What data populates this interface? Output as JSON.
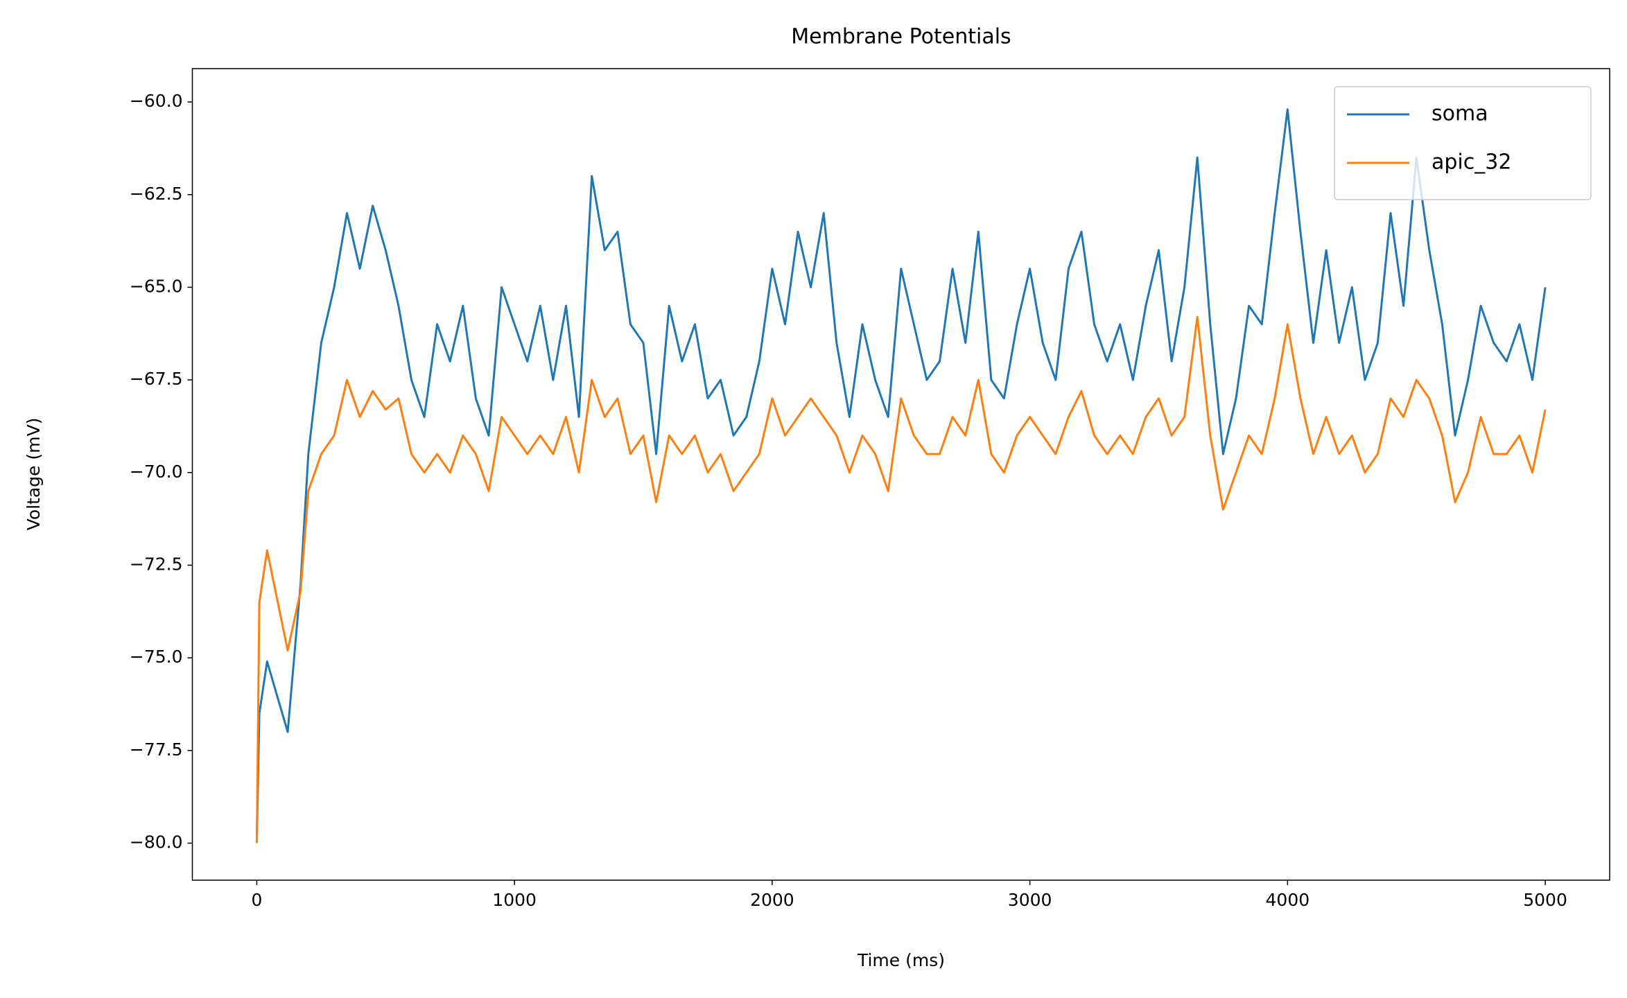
{
  "chart_data": {
    "type": "line",
    "title": "Membrane Potentials",
    "x_label": "Time (ms)",
    "y_label": "Voltage (mV)",
    "x": [
      0,
      10,
      40,
      120,
      170,
      200,
      250,
      300,
      350,
      400,
      450,
      500,
      550,
      600,
      650,
      700,
      750,
      800,
      850,
      900,
      950,
      1000,
      1050,
      1100,
      1150,
      1200,
      1250,
      1300,
      1350,
      1400,
      1450,
      1500,
      1550,
      1600,
      1650,
      1700,
      1750,
      1800,
      1850,
      1900,
      1950,
      2000,
      2050,
      2100,
      2150,
      2200,
      2250,
      2300,
      2350,
      2400,
      2450,
      2500,
      2550,
      2600,
      2650,
      2700,
      2750,
      2800,
      2850,
      2900,
      2950,
      3000,
      3050,
      3100,
      3150,
      3200,
      3250,
      3300,
      3350,
      3400,
      3450,
      3500,
      3550,
      3600,
      3650,
      3700,
      3750,
      3800,
      3850,
      3900,
      3950,
      4000,
      4050,
      4100,
      4150,
      4200,
      4250,
      4300,
      4350,
      4400,
      4450,
      4500,
      4550,
      4600,
      4650,
      4700,
      4750,
      4800,
      4850,
      4900,
      4950,
      5000
    ],
    "series": [
      {
        "name": "soma",
        "color": "#1f77b4",
        "values": [
          -80,
          -76.5,
          -75.1,
          -77,
          -73,
          -69.5,
          -66.5,
          -65,
          -63,
          -64.5,
          -62.8,
          -64,
          -65.5,
          -67.5,
          -68.5,
          -66,
          -67,
          -65.5,
          -68,
          -69,
          -65,
          -66,
          -67,
          -65.5,
          -67.5,
          -65.5,
          -68.5,
          -62,
          -64,
          -63.5,
          -66,
          -66.5,
          -69.5,
          -65.5,
          -67,
          -66,
          -68,
          -67.5,
          -69,
          -68.5,
          -67,
          -64.5,
          -66,
          -63.5,
          -65,
          -63,
          -66.5,
          -68.5,
          -66,
          -67.5,
          -68.5,
          -64.5,
          -66,
          -67.5,
          -67,
          -64.5,
          -66.5,
          -63.5,
          -67.5,
          -68,
          -66,
          -64.5,
          -66.5,
          -67.5,
          -64.5,
          -63.5,
          -66,
          -67,
          -66,
          -67.5,
          -65.5,
          -64,
          -67,
          -65,
          -61.5,
          -66,
          -69.5,
          -68,
          -65.5,
          -66,
          -63,
          -60.2,
          -63.5,
          -66.5,
          -64,
          -66.5,
          -65,
          -67.5,
          -66.5,
          -63,
          -65.5,
          -61.5,
          -64,
          -66,
          -69,
          -67.5,
          -65.5,
          -66.5,
          -67,
          -66,
          -67.5,
          -65
        ]
      },
      {
        "name": "apic_32",
        "color": "#ff7f0e",
        "values": [
          -80,
          -73.5,
          -72.1,
          -74.8,
          -73.2,
          -70.5,
          -69.5,
          -69,
          -67.5,
          -68.5,
          -67.8,
          -68.3,
          -68,
          -69.5,
          -70,
          -69.5,
          -70,
          -69,
          -69.5,
          -70.5,
          -68.5,
          -69,
          -69.5,
          -69,
          -69.5,
          -68.5,
          -70,
          -67.5,
          -68.5,
          -68,
          -69.5,
          -69,
          -70.8,
          -69,
          -69.5,
          -69,
          -70,
          -69.5,
          -70.5,
          -70,
          -69.5,
          -68,
          -69,
          -68.5,
          -68,
          -68.5,
          -69,
          -70,
          -69,
          -69.5,
          -70.5,
          -68,
          -69,
          -69.5,
          -69.5,
          -68.5,
          -69,
          -67.5,
          -69.5,
          -70,
          -69,
          -68.5,
          -69,
          -69.5,
          -68.5,
          -67.8,
          -69,
          -69.5,
          -69,
          -69.5,
          -68.5,
          -68,
          -69,
          -68.5,
          -65.8,
          -69,
          -71,
          -70,
          -69,
          -69.5,
          -68,
          -66,
          -68,
          -69.5,
          -68.5,
          -69.5,
          -69,
          -70,
          -69.5,
          -68,
          -68.5,
          -67.5,
          -68,
          -69,
          -70.8,
          -70,
          -68.5,
          -69.5,
          -69.5,
          -69,
          -70,
          -68.3
        ]
      }
    ],
    "xlim": [
      -250,
      5250
    ],
    "xticks": [
      0,
      1000,
      2000,
      3000,
      4000,
      5000
    ],
    "ylim": [
      -81,
      -59.1
    ],
    "yticks": [
      {
        "value": -80,
        "label": "−80.0"
      },
      {
        "value": -77.5,
        "label": "−77.5"
      },
      {
        "value": -75,
        "label": "−75.0"
      },
      {
        "value": -72.5,
        "label": "−72.5"
      },
      {
        "value": -70,
        "label": "−70.0"
      },
      {
        "value": -67.5,
        "label": "−67.5"
      },
      {
        "value": -65,
        "label": "−65.0"
      },
      {
        "value": -62.5,
        "label": "−62.5"
      },
      {
        "value": -60,
        "label": "−60.0"
      }
    ],
    "legend": "upper right",
    "grid": false
  }
}
